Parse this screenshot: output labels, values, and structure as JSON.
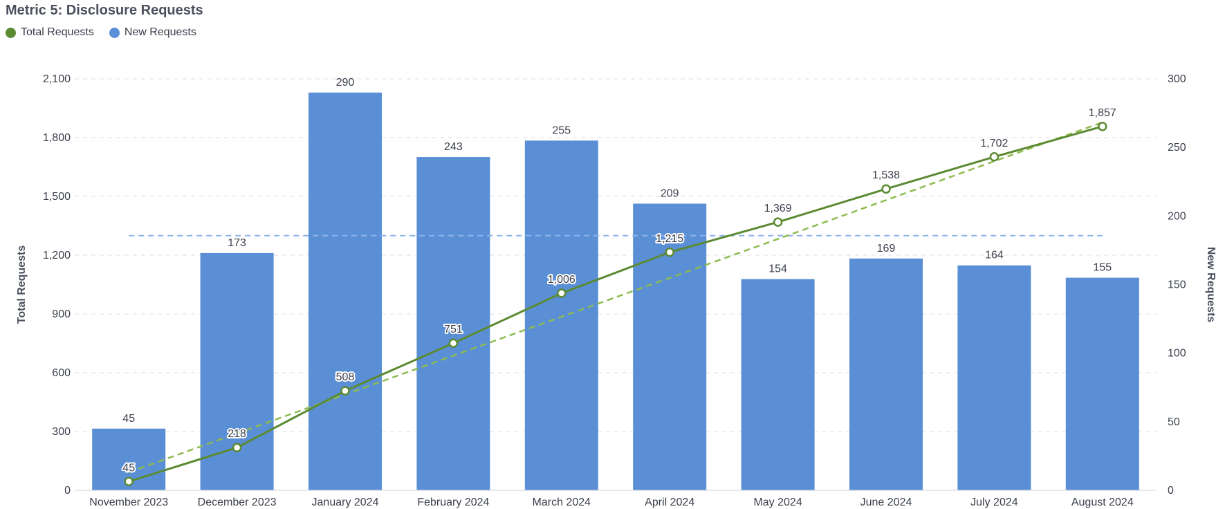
{
  "title": "Metric 5: Disclosure Requests",
  "legend": [
    {
      "label": "Total Requests",
      "color": "#5b8a32"
    },
    {
      "label": "New Requests",
      "color": "#5a8fd6"
    }
  ],
  "chart_data": {
    "type": "bar",
    "categories": [
      "November 2023",
      "December 2023",
      "January 2024",
      "February 2024",
      "March 2024",
      "April 2024",
      "May 2024",
      "June 2024",
      "July 2024",
      "August 2024"
    ],
    "series": [
      {
        "name": "New Requests",
        "type": "bar",
        "axis": "right",
        "color": "#5a8fd6",
        "values": [
          45,
          173,
          290,
          243,
          255,
          209,
          154,
          169,
          164,
          155
        ]
      },
      {
        "name": "Total Requests",
        "type": "line",
        "axis": "left",
        "color": "#5b8a32",
        "values": [
          45,
          218,
          508,
          751,
          1006,
          1215,
          1369,
          1538,
          1702,
          1857
        ]
      }
    ],
    "ylabel": "Total Requests",
    "y2label": "New Requests",
    "ylim": [
      0,
      2100
    ],
    "y2lim": [
      0,
      300
    ],
    "yticks": [
      "0",
      "300",
      "600",
      "900",
      "1,200",
      "1,500",
      "1,800",
      "2,100"
    ],
    "y2ticks": [
      "0",
      "50",
      "100",
      "150",
      "200",
      "250",
      "300"
    ],
    "reference_lines": [
      {
        "kind": "average",
        "series": "New Requests",
        "value": 185.7,
        "style": "dashed",
        "color": "#8cb4ea"
      },
      {
        "kind": "trend",
        "series": "Total Requests",
        "from": 92,
        "to": 1878,
        "style": "dashed",
        "color": "#8dbb4e"
      }
    ],
    "grid": true,
    "legend_position": "top-left"
  }
}
